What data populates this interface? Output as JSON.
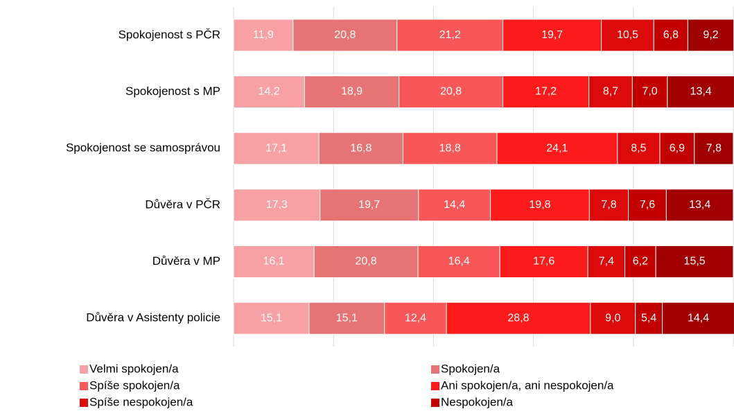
{
  "chart_data": {
    "type": "stacked_barh",
    "categories": [
      "Spokojenost s PČR",
      "Spokojenost s MP",
      "Spokojenost se samosprávou",
      "Důvěra v PČR",
      "Důvěra v MP",
      "Důvěra v Asistenty policie"
    ],
    "xlim": [
      0,
      100
    ],
    "xticks": [
      0,
      20,
      40,
      60,
      80,
      100
    ],
    "grid": true,
    "series": [
      {
        "name": "Velmi spokojen/a",
        "color": "#f7a1a4",
        "values": [
          11.9,
          14.2,
          17.1,
          17.3,
          16.1,
          15.1
        ],
        "value_labels": [
          "11,9",
          "14,2",
          "17,1",
          "17,3",
          "16,1",
          "15,1"
        ]
      },
      {
        "name": "Spokojen/a",
        "color": "#e67474",
        "values": [
          20.8,
          18.9,
          16.8,
          19.7,
          20.8,
          15.1
        ],
        "value_labels": [
          "20,8",
          "18,9",
          "16,8",
          "19,7",
          "20,8",
          "15,1"
        ]
      },
      {
        "name": "Spíše spokojen/a",
        "color": "#f75757",
        "values": [
          21.2,
          20.8,
          18.8,
          14.4,
          16.4,
          12.4
        ],
        "value_labels": [
          "21,2",
          "20,8",
          "18,8",
          "14,4",
          "16,4",
          "12,4"
        ]
      },
      {
        "name": "Ani spokojen/a, ani nespokojen/a",
        "color": "#fb1b1b",
        "values": [
          19.7,
          17.2,
          24.1,
          19.8,
          17.6,
          28.8
        ],
        "value_labels": [
          "19,7",
          "17,2",
          "24,1",
          "19,8",
          "17,6",
          "28,8"
        ]
      },
      {
        "name": "Spíše nespokojen/a",
        "color": "#dc0a0a",
        "values": [
          10.5,
          8.7,
          8.5,
          7.8,
          7.4,
          9.0
        ],
        "value_labels": [
          "10,5",
          "8,7",
          "8,5",
          "7,8",
          "7,4",
          "9,0"
        ]
      },
      {
        "name": "Nespokojen/a",
        "color": "#c20000",
        "values": [
          6.8,
          7.0,
          6.9,
          7.6,
          6.2,
          5.4
        ],
        "value_labels": [
          "6,8",
          "7,0",
          "6,9",
          "7,6",
          "6,2",
          "5,4"
        ]
      },
      {
        "name": null,
        "color": "#a00000",
        "values": [
          9.2,
          13.4,
          7.8,
          13.4,
          15.5,
          14.4
        ],
        "value_labels": [
          "9,2",
          "13,4",
          "7,8",
          "13,4",
          "15,5",
          "14,4"
        ]
      }
    ]
  }
}
